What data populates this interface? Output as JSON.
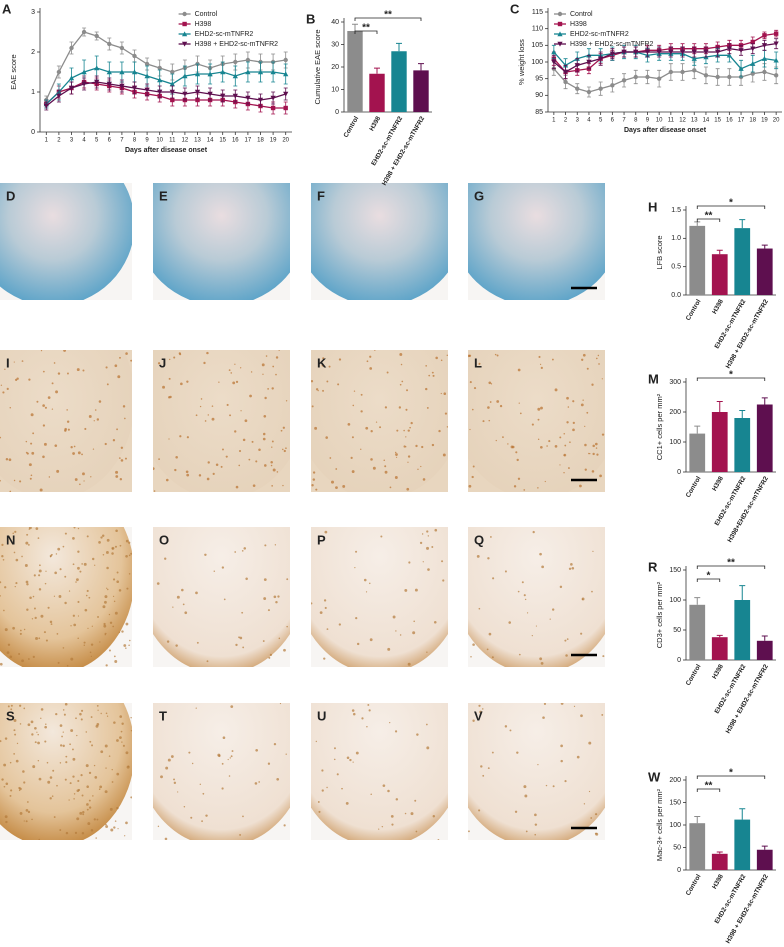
{
  "chart_data": [
    {
      "type": "line",
      "label": "A",
      "ylabel": "EAE score",
      "xlabel": "Days after disease onset",
      "x": [
        1,
        2,
        3,
        4,
        5,
        6,
        7,
        8,
        9,
        10,
        11,
        12,
        13,
        14,
        15,
        16,
        17,
        18,
        19,
        20
      ],
      "xlim": [
        0.5,
        20.5
      ],
      "xticks": [
        1,
        2,
        3,
        4,
        5,
        6,
        7,
        8,
        9,
        10,
        11,
        12,
        13,
        14,
        15,
        16,
        17,
        18,
        19,
        20
      ],
      "ylim": [
        0,
        3
      ],
      "yticks": [
        0,
        1,
        2,
        3
      ],
      "legend": "top-right",
      "series": [
        {
          "name": "Control",
          "color": "#8c8c8c",
          "marker": "circle",
          "values": [
            0.8,
            1.5,
            2.1,
            2.5,
            2.4,
            2.2,
            2.1,
            1.9,
            1.7,
            1.6,
            1.5,
            1.6,
            1.7,
            1.6,
            1.7,
            1.75,
            1.8,
            1.75,
            1.75,
            1.8
          ],
          "errors": [
            0.1,
            0.15,
            0.15,
            0.1,
            0.1,
            0.15,
            0.15,
            0.15,
            0.15,
            0.2,
            0.2,
            0.2,
            0.2,
            0.2,
            0.2,
            0.2,
            0.2,
            0.2,
            0.2,
            0.2
          ]
        },
        {
          "name": "H398",
          "color": "#a3134f",
          "marker": "square",
          "values": [
            0.7,
            1.0,
            1.1,
            1.25,
            1.2,
            1.15,
            1.1,
            1.0,
            0.95,
            0.9,
            0.8,
            0.8,
            0.8,
            0.8,
            0.8,
            0.75,
            0.7,
            0.65,
            0.6,
            0.6
          ],
          "errors": [
            0.1,
            0.15,
            0.15,
            0.15,
            0.15,
            0.15,
            0.15,
            0.15,
            0.15,
            0.15,
            0.15,
            0.15,
            0.15,
            0.15,
            0.15,
            0.15,
            0.15,
            0.15,
            0.15,
            0.15
          ]
        },
        {
          "name": "EHD2-sc-mTNFR2",
          "color": "#178591",
          "marker": "triangle",
          "values": [
            0.7,
            1.0,
            1.35,
            1.5,
            1.6,
            1.5,
            1.5,
            1.5,
            1.4,
            1.3,
            1.2,
            1.4,
            1.45,
            1.45,
            1.5,
            1.4,
            1.5,
            1.5,
            1.5,
            1.45
          ],
          "errors": [
            0.1,
            0.2,
            0.25,
            0.3,
            0.3,
            0.25,
            0.25,
            0.25,
            0.25,
            0.25,
            0.25,
            0.25,
            0.25,
            0.25,
            0.25,
            0.25,
            0.25,
            0.25,
            0.25,
            0.25
          ]
        },
        {
          "name": "H398 + EHD2-sc-mTNFR2",
          "color": "#5e0f4f",
          "marker": "down-triangle",
          "values": [
            0.65,
            0.9,
            1.1,
            1.2,
            1.25,
            1.2,
            1.15,
            1.1,
            1.05,
            1.0,
            1.0,
            0.95,
            1.0,
            0.95,
            0.9,
            0.9,
            0.85,
            0.8,
            0.85,
            0.95
          ],
          "errors": [
            0.1,
            0.15,
            0.15,
            0.15,
            0.15,
            0.15,
            0.15,
            0.15,
            0.15,
            0.15,
            0.15,
            0.15,
            0.15,
            0.15,
            0.15,
            0.15,
            0.15,
            0.15,
            0.15,
            0.15
          ]
        }
      ]
    },
    {
      "type": "bar",
      "label": "B",
      "ylabel": "Cumulative EAE score",
      "categories": [
        "Control",
        "H398",
        "EHD2-sc-mTNFR2",
        "H398 + EHD2-sc-mTNFR2"
      ],
      "values": [
        36,
        17,
        27,
        18.5
      ],
      "errors": [
        3,
        2.5,
        3.5,
        3
      ],
      "colors": [
        "#8c8c8c",
        "#a3134f",
        "#178591",
        "#5e0f4f"
      ],
      "ylim": [
        0,
        40
      ],
      "yticks": [
        0,
        10,
        20,
        30,
        40
      ],
      "significance": [
        {
          "pair": [
            "Control",
            "H398"
          ],
          "label": "**"
        },
        {
          "pair": [
            "Control",
            "H398 + EHD2-sc-mTNFR2"
          ],
          "label": "**"
        }
      ]
    },
    {
      "type": "line",
      "label": "C",
      "ylabel": "% weight loss",
      "xlabel": "Days after disease onset",
      "x": [
        1,
        2,
        3,
        4,
        5,
        6,
        7,
        8,
        9,
        10,
        11,
        12,
        13,
        14,
        15,
        16,
        17,
        18,
        19,
        20
      ],
      "xlim": [
        0.5,
        20.5
      ],
      "xticks": [
        1,
        2,
        3,
        4,
        5,
        6,
        7,
        8,
        9,
        10,
        11,
        12,
        13,
        14,
        15,
        16,
        17,
        18,
        19,
        20
      ],
      "ylim": [
        85,
        115
      ],
      "yticks": [
        85,
        90,
        95,
        100,
        105,
        110,
        115
      ],
      "legend": "top-left",
      "series": [
        {
          "name": "Control",
          "color": "#8c8c8c",
          "marker": "circle",
          "values": [
            98,
            94,
            92,
            91,
            92,
            93,
            94.5,
            95.5,
            95.5,
            95,
            97,
            97,
            97.5,
            96,
            95.5,
            95.5,
            95.5,
            96.5,
            97,
            96
          ],
          "errors": [
            2,
            2,
            1.5,
            1.5,
            2,
            2,
            2,
            2,
            2,
            2.5,
            2.5,
            2.5,
            2.5,
            2.5,
            2.5,
            2.5,
            2.5,
            2.5,
            2.5,
            2.5
          ]
        },
        {
          "name": "H398",
          "color": "#a3134f",
          "marker": "square",
          "values": [
            101,
            97,
            97.5,
            98,
            101,
            102,
            103,
            103,
            103.5,
            103.5,
            104,
            104,
            104,
            104,
            104.5,
            105,
            105,
            106,
            108,
            108.5
          ],
          "errors": [
            2,
            2,
            1.5,
            1.5,
            1.5,
            1.5,
            1.5,
            1.5,
            1.5,
            1.5,
            1.5,
            1.5,
            1.5,
            1.5,
            1.5,
            1.5,
            1.5,
            1.5,
            1,
            1
          ]
        },
        {
          "name": "EHD2-sc-mTNFR2",
          "color": "#178591",
          "marker": "triangle",
          "values": [
            103,
            99,
            101,
            102,
            102,
            102.5,
            103,
            103,
            102,
            102.5,
            102.5,
            102.5,
            101,
            101.5,
            102,
            102,
            98,
            99.5,
            101,
            100.5
          ],
          "errors": [
            2,
            2,
            2,
            2,
            2,
            2,
            2,
            2,
            2,
            2,
            2,
            2,
            2,
            2,
            2,
            2,
            2.5,
            2.5,
            2.5,
            2.5
          ]
        },
        {
          "name": "H398 + EHD2-sc-mTNFR2",
          "color": "#5e0f4f",
          "marker": "down-triangle",
          "values": [
            100,
            97,
            99,
            100,
            101,
            102.5,
            103,
            103,
            103,
            103,
            103,
            103,
            103,
            103,
            103,
            104,
            103.5,
            104,
            105,
            105.5
          ],
          "errors": [
            2,
            2,
            2,
            2,
            2,
            1.5,
            1.5,
            1.5,
            1.5,
            1.5,
            1.5,
            1.5,
            1.5,
            1.5,
            1.5,
            1.5,
            1.5,
            1.5,
            1.5,
            1.5
          ]
        }
      ]
    },
    {
      "type": "bar",
      "label": "H",
      "ylabel": "LFB score",
      "categories": [
        "Control",
        "H398",
        "EHD2-sc-mTNFR2",
        "H398 + EHD2-sc-mTNFR2"
      ],
      "values": [
        1.22,
        0.72,
        1.18,
        0.82
      ],
      "errors": [
        0.07,
        0.07,
        0.15,
        0.06
      ],
      "colors": [
        "#8c8c8c",
        "#a3134f",
        "#178591",
        "#5e0f4f"
      ],
      "ylim": [
        0,
        1.5
      ],
      "yticks": [
        {
          "value": 0,
          "label": "0.0"
        },
        {
          "value": 0.5,
          "label": "0.5"
        },
        {
          "value": 1,
          "label": "1.0"
        },
        {
          "value": 1.5,
          "label": "1.5"
        }
      ],
      "significance": [
        {
          "pair": [
            "Control",
            "H398"
          ],
          "label": "**"
        },
        {
          "pair": [
            "Control",
            "H398 + EHD2-sc-mTNFR2"
          ],
          "label": "*"
        }
      ]
    },
    {
      "type": "bar",
      "label": "M",
      "ylabel": "CC1+ cells per mm²",
      "categories": [
        "Control",
        "H398",
        "EHD2-sc-mTNFR2",
        "H398+EHD2-sc-mTNFR2"
      ],
      "values": [
        128,
        200,
        180,
        225
      ],
      "errors": [
        25,
        35,
        25,
        22
      ],
      "colors": [
        "#8c8c8c",
        "#a3134f",
        "#178591",
        "#5e0f4f"
      ],
      "ylim": [
        0,
        300
      ],
      "yticks": [
        0,
        100,
        200,
        300
      ],
      "significance": [
        {
          "pair": [
            "Control",
            "H398+EHD2-sc-mTNFR2"
          ],
          "label": "*"
        }
      ]
    },
    {
      "type": "bar",
      "label": "R",
      "ylabel": "CD3+ cells per mm²",
      "categories": [
        "Control",
        "H398",
        "EHD2-sc-mTNFR2",
        "H398 + EHD2-sc-mTNFR2"
      ],
      "values": [
        92,
        38,
        100,
        32
      ],
      "errors": [
        12,
        3,
        24,
        8
      ],
      "colors": [
        "#8c8c8c",
        "#a3134f",
        "#178591",
        "#5e0f4f"
      ],
      "ylim": [
        0,
        150
      ],
      "yticks": [
        0,
        50,
        100,
        150
      ],
      "significance": [
        {
          "pair": [
            "Control",
            "H398"
          ],
          "label": "*"
        },
        {
          "pair": [
            "Control",
            "H398 + EHD2-sc-mTNFR2"
          ],
          "label": "**"
        }
      ]
    },
    {
      "type": "bar",
      "label": "W",
      "ylabel": "Mac-3+ cells per mm²",
      "categories": [
        "Control",
        "H398",
        "EHD2-sc-mTNFR2",
        "H398 + EHD2-sc-mTNFR2"
      ],
      "values": [
        104,
        36,
        112,
        45
      ],
      "errors": [
        15,
        4,
        24,
        8
      ],
      "colors": [
        "#8c8c8c",
        "#a3134f",
        "#178591",
        "#5e0f4f"
      ],
      "ylim": [
        0,
        200
      ],
      "yticks": [
        0,
        50,
        100,
        150,
        200
      ],
      "significance": [
        {
          "pair": [
            "Control",
            "H398"
          ],
          "label": "**"
        },
        {
          "pair": [
            "Control",
            "H398 + EHD2-sc-mTNFR2"
          ],
          "label": "*"
        }
      ]
    }
  ],
  "micrograph_rows": [
    [
      "D",
      "E",
      "F",
      "G"
    ],
    [
      "I",
      "J",
      "K",
      "L"
    ],
    [
      "N",
      "O",
      "P",
      "Q"
    ],
    [
      "S",
      "T",
      "U",
      "V"
    ]
  ]
}
